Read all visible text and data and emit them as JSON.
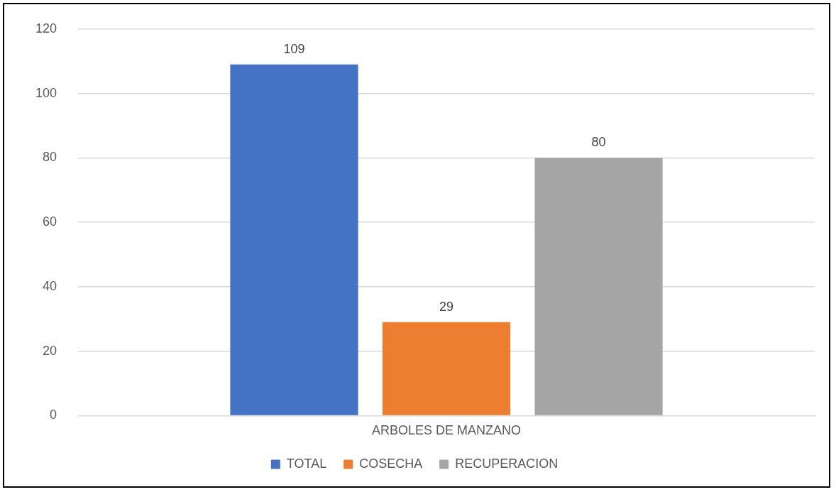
{
  "chart_data": {
    "type": "bar",
    "categories": [
      "ARBOLES DE MANZANO"
    ],
    "series": [
      {
        "name": "TOTAL",
        "color": "#4472c4",
        "values": [
          109
        ]
      },
      {
        "name": "COSECHA",
        "color": "#ed7d31",
        "values": [
          29
        ]
      },
      {
        "name": "RECUPERACION",
        "color": "#a5a5a5",
        "values": [
          80
        ]
      }
    ],
    "ylim": [
      0,
      120
    ],
    "yticks": [
      0,
      20,
      40,
      60,
      80,
      100,
      120
    ],
    "grid": "y",
    "legend": "bottom",
    "data_labels": true
  }
}
